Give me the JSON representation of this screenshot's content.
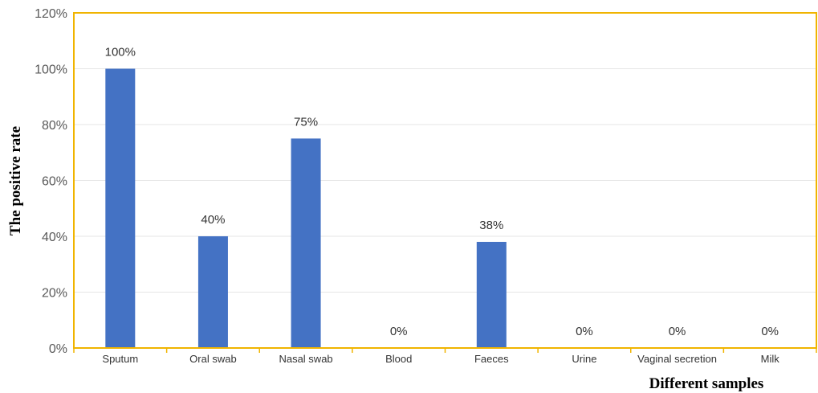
{
  "chart_data": {
    "type": "bar",
    "categories": [
      "Sputum",
      "Oral swab",
      "Nasal swab",
      "Blood",
      "Faeces",
      "Urine",
      "Vaginal secretion",
      "Milk"
    ],
    "values": [
      100,
      40,
      75,
      0,
      38,
      0,
      0,
      0
    ],
    "data_labels": [
      "100%",
      "40%",
      "75%",
      "0%",
      "38%",
      "0%",
      "0%",
      "0%"
    ],
    "yticks": [
      "0%",
      "20%",
      "40%",
      "60%",
      "80%",
      "100%",
      "120%"
    ],
    "ylim": [
      0,
      120
    ],
    "xlabel": "Different samples",
    "ylabel": "The positive rate",
    "grid": true,
    "colors": {
      "bar": "#4472c4",
      "frame": "#f0b400",
      "grid": "#e6e6e6"
    }
  }
}
